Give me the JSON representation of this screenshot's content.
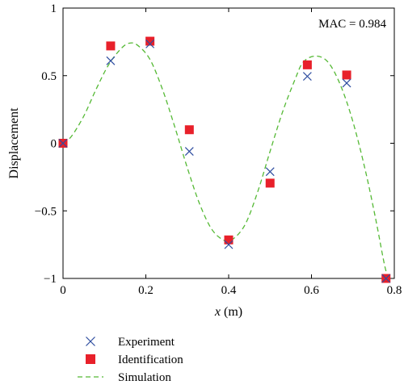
{
  "chart_data": {
    "type": "scatter",
    "xlabel_var": "x",
    "xlabel_unit": " (m)",
    "ylabel": "Displacement",
    "xlim": [
      0,
      0.8
    ],
    "ylim": [
      -1,
      1
    ],
    "x_ticks": [
      0,
      0.2,
      0.4,
      0.6,
      0.8
    ],
    "x_tick_labels": [
      "0",
      "0.2",
      "0.4",
      "0.6",
      "0.8"
    ],
    "y_ticks": [
      -1,
      -0.5,
      0,
      0.5,
      1
    ],
    "y_tick_labels": [
      "−1",
      "−0.5",
      "0",
      "0.5",
      "1"
    ],
    "grid": false,
    "annotation": "MAC = 0.984",
    "legend_placement": "bottom-left, below plot",
    "series": [
      {
        "name": "Experiment",
        "marker": "x",
        "color": "#2e4da0",
        "points": [
          {
            "x": 0,
            "y": 0
          },
          {
            "x": 0.115,
            "y": 0.61
          },
          {
            "x": 0.21,
            "y": 0.735
          },
          {
            "x": 0.305,
            "y": -0.06
          },
          {
            "x": 0.4,
            "y": -0.75
          },
          {
            "x": 0.5,
            "y": -0.21
          },
          {
            "x": 0.59,
            "y": 0.495
          },
          {
            "x": 0.685,
            "y": 0.445
          },
          {
            "x": 0.78,
            "y": -1
          }
        ]
      },
      {
        "name": "Identification",
        "marker": "square",
        "color": "#e8202a",
        "points": [
          {
            "x": 0,
            "y": 0
          },
          {
            "x": 0.115,
            "y": 0.72
          },
          {
            "x": 0.21,
            "y": 0.755
          },
          {
            "x": 0.305,
            "y": 0.1
          },
          {
            "x": 0.4,
            "y": -0.715
          },
          {
            "x": 0.5,
            "y": -0.295
          },
          {
            "x": 0.59,
            "y": 0.58
          },
          {
            "x": 0.685,
            "y": 0.505
          },
          {
            "x": 0.78,
            "y": -1
          }
        ]
      },
      {
        "name": "Simulation",
        "marker": "dashed-line",
        "color": "#55b935",
        "points": [
          {
            "x": 0,
            "y": 0
          },
          {
            "x": 0.02,
            "y": 0.05
          },
          {
            "x": 0.05,
            "y": 0.2
          },
          {
            "x": 0.08,
            "y": 0.4
          },
          {
            "x": 0.11,
            "y": 0.58
          },
          {
            "x": 0.14,
            "y": 0.7
          },
          {
            "x": 0.16,
            "y": 0.74
          },
          {
            "x": 0.18,
            "y": 0.725
          },
          {
            "x": 0.21,
            "y": 0.62
          },
          {
            "x": 0.24,
            "y": 0.4
          },
          {
            "x": 0.27,
            "y": 0.12
          },
          {
            "x": 0.3,
            "y": -0.18
          },
          {
            "x": 0.33,
            "y": -0.45
          },
          {
            "x": 0.36,
            "y": -0.64
          },
          {
            "x": 0.39,
            "y": -0.72
          },
          {
            "x": 0.41,
            "y": -0.71
          },
          {
            "x": 0.44,
            "y": -0.6
          },
          {
            "x": 0.47,
            "y": -0.36
          },
          {
            "x": 0.5,
            "y": -0.06
          },
          {
            "x": 0.53,
            "y": 0.23
          },
          {
            "x": 0.56,
            "y": 0.47
          },
          {
            "x": 0.58,
            "y": 0.6
          },
          {
            "x": 0.61,
            "y": 0.645
          },
          {
            "x": 0.64,
            "y": 0.6
          },
          {
            "x": 0.67,
            "y": 0.43
          },
          {
            "x": 0.7,
            "y": 0.16
          },
          {
            "x": 0.73,
            "y": -0.2
          },
          {
            "x": 0.755,
            "y": -0.56
          },
          {
            "x": 0.775,
            "y": -0.88
          },
          {
            "x": 0.785,
            "y": -1
          }
        ]
      }
    ]
  }
}
